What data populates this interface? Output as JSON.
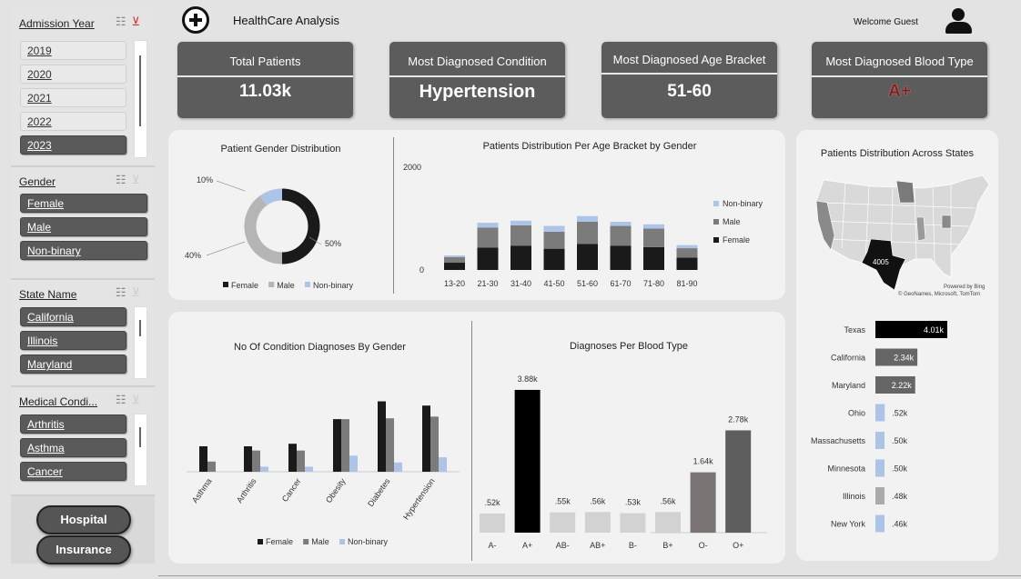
{
  "header": {
    "title": "HealthCare Analysis",
    "welcome": "Welcome Guest"
  },
  "slicers": {
    "year": {
      "title": "Admission Year",
      "items": [
        "2019",
        "2020",
        "2021",
        "2022",
        "2023"
      ]
    },
    "gender": {
      "title": "Gender",
      "items": [
        "Female",
        "Male",
        "Non-binary"
      ]
    },
    "state": {
      "title": "State Name",
      "items": [
        "California",
        "Illinois",
        "Maryland"
      ]
    },
    "condition": {
      "title": "Medical Condi...",
      "items": [
        "Arthritis",
        "Asthma",
        "Cancer"
      ]
    }
  },
  "nav": {
    "hospital": "Hospital",
    "insurance": "Insurance"
  },
  "kpis": [
    {
      "label": "Total Patients",
      "value": "11.03k"
    },
    {
      "label": "Most Diagnosed Condition",
      "value": "Hypertension"
    },
    {
      "label": "Most Diagnosed Age Bracket",
      "value": "51-60"
    },
    {
      "label": "Most Diagnosed Blood Type",
      "value": "A+"
    }
  ],
  "colors": {
    "female": "#1a1a1a",
    "male": "#7b7b7b",
    "nonbinary": "#aec4e6",
    "blood_accent": "#8b1a1a",
    "highlight": "#000000",
    "muted": "#d2d2d2"
  },
  "chart_data": [
    {
      "type": "pie",
      "title": "Patient Gender Distribution",
      "categories": [
        "Female",
        "Male",
        "Non-binary"
      ],
      "values": [
        50,
        40,
        10
      ],
      "labels": [
        "50%",
        "40%",
        "10%"
      ],
      "legend": "bottom"
    },
    {
      "type": "bar",
      "title": "Patients Distribution Per Age Bracket by Gender",
      "stacked": true,
      "categories": [
        "13-20",
        "21-30",
        "31-40",
        "41-50",
        "51-60",
        "61-70",
        "71-80",
        "81-90"
      ],
      "series": [
        {
          "name": "Female",
          "values": [
            140,
            430,
            470,
            410,
            500,
            470,
            440,
            240
          ]
        },
        {
          "name": "Male",
          "values": [
            110,
            390,
            390,
            330,
            430,
            380,
            360,
            180
          ]
        },
        {
          "name": "Non-binary",
          "values": [
            30,
            90,
            90,
            110,
            110,
            80,
            80,
            60
          ]
        }
      ],
      "yticks": [
        "2000",
        "0"
      ],
      "ylim": [
        0,
        2000
      ],
      "legend": "right"
    },
    {
      "type": "bar",
      "title": "No Of Condition Diagnoses By Gender",
      "categories": [
        "Asthma",
        "Arthritis",
        "Cancer",
        "Obesity",
        "Diabetes",
        "Hypertension"
      ],
      "series": [
        {
          "name": "Female",
          "values": [
            300,
            300,
            330,
            620,
            830,
            780
          ]
        },
        {
          "name": "Male",
          "values": [
            120,
            250,
            250,
            620,
            630,
            650
          ]
        },
        {
          "name": "Non-binary",
          "values": [
            0,
            60,
            60,
            190,
            110,
            170
          ]
        }
      ],
      "ylim": [
        0,
        900
      ],
      "legend": "bottom"
    },
    {
      "type": "bar",
      "title": "Diagnoses Per Blood Type",
      "categories": [
        "A-",
        "A+",
        "AB-",
        "AB+",
        "B-",
        "B+",
        "O-",
        "O+"
      ],
      "values": [
        520,
        3880,
        550,
        560,
        530,
        560,
        1640,
        2780
      ],
      "labels": [
        ".52k",
        "3.88k",
        ".55k",
        ".56k",
        ".53k",
        ".56k",
        "1.64k",
        "2.78k"
      ],
      "ylim": [
        0,
        4200
      ]
    },
    {
      "type": "bar",
      "orientation": "horizontal",
      "title": "Patients Distribution Across States",
      "categories": [
        "Texas",
        "California",
        "Maryland",
        "Ohio",
        "Massachusetts",
        "Minnesota",
        "Illinois",
        "New York"
      ],
      "values": [
        4010,
        2340,
        2220,
        520,
        500,
        500,
        480,
        460
      ],
      "labels": [
        "4.01k",
        "2.34k",
        "2.22k",
        ".52k",
        ".50k",
        ".50k",
        ".48k",
        ".46k"
      ],
      "map_label": "4005",
      "map_credit": "Powered by Bing",
      "map_attribution": "© GeoNames, Microsoft, TomTom"
    }
  ]
}
